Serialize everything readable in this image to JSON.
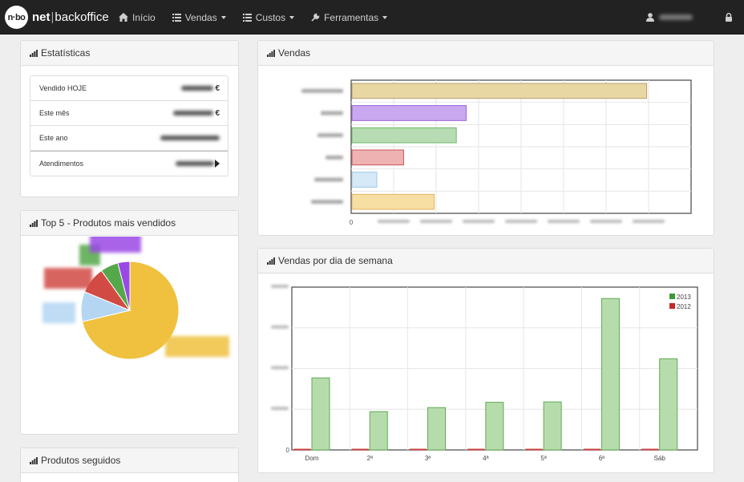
{
  "brand": {
    "logo_text": "n·bo",
    "name_bold": "net",
    "separator": "|",
    "name_rest": "backoffice"
  },
  "nav": {
    "items": [
      {
        "label": "Início",
        "icon": "home-icon"
      },
      {
        "label": "Vendas",
        "icon": "list-icon"
      },
      {
        "label": "Custos",
        "icon": "list-icon"
      },
      {
        "label": "Ferramentas",
        "icon": "wrench-icon"
      }
    ]
  },
  "stats": {
    "title": "Estatísticas",
    "rows": [
      {
        "label": "Vendido HOJE",
        "suffix": "€"
      },
      {
        "label": "Este mês",
        "suffix": "€"
      },
      {
        "label": "Este ano",
        "suffix": ""
      },
      {
        "label": "Atendimentos",
        "suffix": ""
      }
    ]
  },
  "top5": {
    "title": "Top 5 - Produtos mais vendidos"
  },
  "followed": {
    "title": "Produtos seguidos"
  },
  "vendas": {
    "title": "Vendas",
    "x_zero_label": "0",
    "colors": [
      "#e8d7a3",
      "#c9a8ef",
      "#b7dcb4",
      "#eeb2b2",
      "#d6e9f7",
      "#f7dea3"
    ],
    "borders": [
      "#b8a068",
      "#9a60d8",
      "#6db868",
      "#cc5555",
      "#9cc6e6",
      "#e0b660"
    ]
  },
  "weekday": {
    "title": "Vendas por dia de semana",
    "categories": [
      "Dom",
      "2ª",
      "3ª",
      "4ª",
      "5ª",
      "6ª",
      "Sáb"
    ],
    "legend": [
      "2013",
      "2012"
    ],
    "legend_colors": [
      "#3c9a35",
      "#c62828"
    ],
    "y_zero_label": "0"
  },
  "chart_data": [
    {
      "type": "bar",
      "orientation": "horizontal",
      "title": "Vendas",
      "values": [
        867,
        336,
        307,
        152,
        73,
        242
      ],
      "note_scale_relative": true
    },
    {
      "type": "pie",
      "title": "Top 5 - Produtos mais vendidos",
      "values": [
        72,
        10,
        9,
        6,
        4
      ],
      "colors": [
        "#efc13f",
        "#b4d6f3",
        "#d24a44",
        "#54a84a",
        "#9a48e6"
      ]
    },
    {
      "type": "bar",
      "title": "Vendas por dia de semana",
      "categories": [
        "Dom",
        "2ª",
        "3ª",
        "4ª",
        "5ª",
        "6ª",
        "Sáb"
      ],
      "series": [
        {
          "name": "2013",
          "values": [
            885,
            470,
            520,
            585,
            590,
            1860,
            1120
          ]
        },
        {
          "name": "2012",
          "values": [
            5,
            5,
            5,
            5,
            5,
            5,
            5
          ]
        }
      ],
      "ylim": [
        0,
        2000
      ]
    }
  ]
}
